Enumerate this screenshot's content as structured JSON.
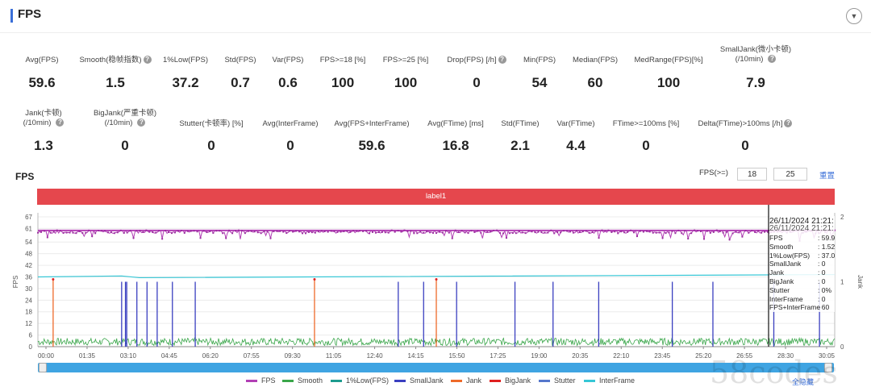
{
  "header": {
    "title": "FPS",
    "collapse_icon": "chevron-down-icon"
  },
  "metrics_row1": [
    {
      "label": "Avg(FPS)",
      "value": "59.6",
      "help": false
    },
    {
      "label": "Smooth(稳帧指数)",
      "value": "1.5",
      "help": true
    },
    {
      "label": "1%Low(FPS)",
      "value": "37.2",
      "help": false
    },
    {
      "label": "Std(FPS)",
      "value": "0.7",
      "help": false
    },
    {
      "label": "Var(FPS)",
      "value": "0.6",
      "help": false
    },
    {
      "label": "FPS>=18 [%]",
      "value": "100",
      "help": false
    },
    {
      "label": "FPS>=25 [%]",
      "value": "100",
      "help": false
    },
    {
      "label": "Drop(FPS) [/h]",
      "value": "0",
      "help": true
    },
    {
      "label": "Min(FPS)",
      "value": "54",
      "help": false
    },
    {
      "label": "Median(FPS)",
      "value": "60",
      "help": false
    },
    {
      "label": "MedRange(FPS)[%]",
      "value": "100",
      "help": false
    },
    {
      "label": "SmallJank(微小卡顿)",
      "label2": "(/10min)",
      "value": "7.9",
      "help": true
    }
  ],
  "metrics_row2": [
    {
      "label": "Jank(卡顿)",
      "label2": "(/10min)",
      "value": "1.3",
      "help": true
    },
    {
      "label": "BigJank(严重卡顿)",
      "label2": "(/10min)",
      "value": "0",
      "help": true
    },
    {
      "label": "Stutter(卡顿率) [%]",
      "value": "0",
      "help": false
    },
    {
      "label": "Avg(InterFrame)",
      "value": "0",
      "help": false
    },
    {
      "label": "Avg(FPS+InterFrame)",
      "value": "59.6",
      "help": false
    },
    {
      "label": "Avg(FTime) [ms]",
      "value": "16.8",
      "help": false
    },
    {
      "label": "Std(FTime)",
      "value": "2.1",
      "help": false
    },
    {
      "label": "Var(FTime)",
      "value": "4.4",
      "help": false
    },
    {
      "label": "FTime>=100ms [%]",
      "value": "0",
      "help": false
    },
    {
      "label": "Delta(FTime)>100ms [/h]",
      "value": "0",
      "help": true
    }
  ],
  "chart_section": {
    "title": "FPS",
    "threshold_label": "FPS(>=)",
    "threshold1": "18",
    "threshold2": "25",
    "reset_label": "重置",
    "band_label": "label1",
    "show_all_label": "全隐藏"
  },
  "chart_data": {
    "type": "line",
    "ylabel": "FPS",
    "y2label": "Jank",
    "yticks": [
      0,
      6,
      12,
      18,
      24,
      30,
      36,
      42,
      48,
      54,
      61,
      67
    ],
    "ylim": [
      0,
      67
    ],
    "y2ticks": [
      0,
      1,
      2
    ],
    "y2lim": [
      0,
      2
    ],
    "xticks": [
      "00:00",
      "01:35",
      "03:10",
      "04:45",
      "06:20",
      "07:55",
      "09:30",
      "11:05",
      "12:40",
      "14:15",
      "15:50",
      "17:25",
      "19:00",
      "20:35",
      "22:10",
      "23:45",
      "25:20",
      "26:55",
      "28:30",
      "30:05"
    ],
    "legend": [
      {
        "name": "FPS",
        "color": "#b23fb5"
      },
      {
        "name": "Smooth",
        "color": "#3aa64a"
      },
      {
        "name": "1%Low(FPS)",
        "color": "#1d9c8f"
      },
      {
        "name": "SmallJank",
        "color": "#3a3fc0"
      },
      {
        "name": "Jank",
        "color": "#ee6a2a"
      },
      {
        "name": "BigJank",
        "color": "#e02020"
      },
      {
        "name": "Stutter",
        "color": "#5577cc"
      },
      {
        "name": "InterFrame",
        "color": "#36c7d6"
      }
    ],
    "series": [
      {
        "name": "FPS",
        "approx_value": 59.6
      },
      {
        "name": "1%Low(FPS)",
        "start": 36,
        "end": 37.2
      },
      {
        "name": "Smooth",
        "approx_value": 1.5
      }
    ],
    "smalljank_times_min": [
      3.3,
      3.45,
      3.5,
      3.9,
      4.3,
      4.7,
      5.3,
      6.2,
      14.2,
      15.2,
      16.5,
      18.8,
      20.3,
      22.1,
      25.0,
      26.6,
      29.0,
      30.8
    ],
    "jank_times_min": [
      0.6,
      10.9,
      15.7
    ]
  },
  "tooltip": {
    "time": "26/11/2024 21:21:",
    "overlap": "26/11/2024 21:21:",
    "rows": [
      {
        "k": "FPS",
        "v": ": 59.9"
      },
      {
        "k": "Smooth",
        "v": ": 1.52"
      },
      {
        "k": "1%Low(FPS)",
        "v": ": 37.0"
      },
      {
        "k": "SmallJank",
        "v": ": 0"
      },
      {
        "k": "Jank",
        "v": ": 0"
      },
      {
        "k": "BigJank",
        "v": ": 0"
      },
      {
        "k": "Stutter",
        "v": ": 0%"
      },
      {
        "k": "InterFrame",
        "v": ": 0"
      },
      {
        "k": "FPS+InterFrame",
        "v": ": 60"
      }
    ]
  },
  "watermark": "58codes"
}
